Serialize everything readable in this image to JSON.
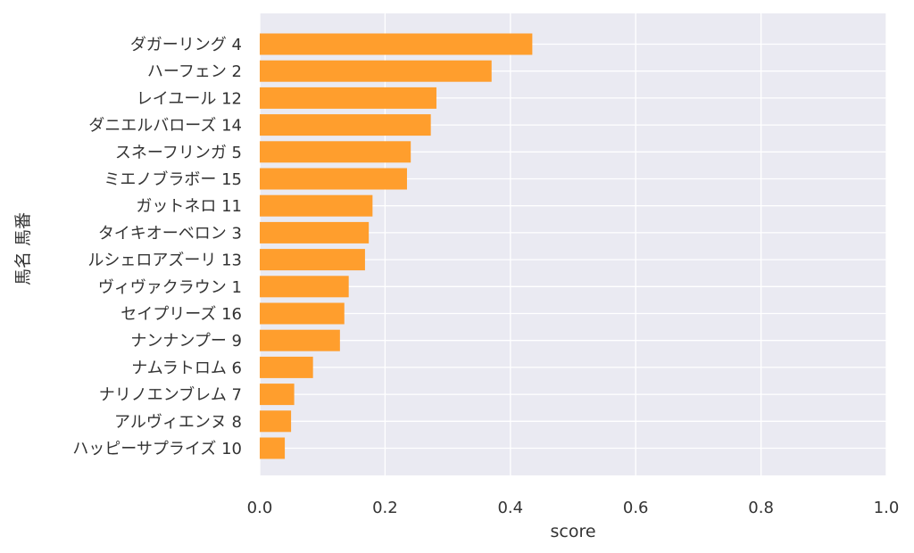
{
  "chart_data": {
    "type": "bar",
    "orientation": "horizontal",
    "categories": [
      "ダガーリング 4",
      "ハーフェン 2",
      "レイユール 12",
      "ダニエルバローズ 14",
      "スネーフリンガ 5",
      "ミエノブラボー 15",
      "ガットネロ 11",
      "タイキオーベロン 3",
      "ルシェロアズーリ 13",
      "ヴィヴァクラウン 1",
      "セイプリーズ 16",
      "ナンナンプー 9",
      "ナムラトロム 6",
      "ナリノエンブレム 7",
      "アルヴィエンヌ 8",
      "ハッピーサプライズ 10"
    ],
    "values": [
      0.435,
      0.37,
      0.282,
      0.273,
      0.241,
      0.235,
      0.18,
      0.174,
      0.168,
      0.142,
      0.135,
      0.128,
      0.085,
      0.055,
      0.05,
      0.04
    ],
    "xlabel": "score",
    "ylabel": "馬名 馬番",
    "xlim": [
      0,
      1.0
    ],
    "xticks": [
      "0.0",
      "0.2",
      "0.4",
      "0.6",
      "0.8",
      "1.0"
    ],
    "grid": true,
    "bar_color": "#ff9e2d",
    "plot_background": "#eaeaf2",
    "grid_color": "#ffffff"
  }
}
